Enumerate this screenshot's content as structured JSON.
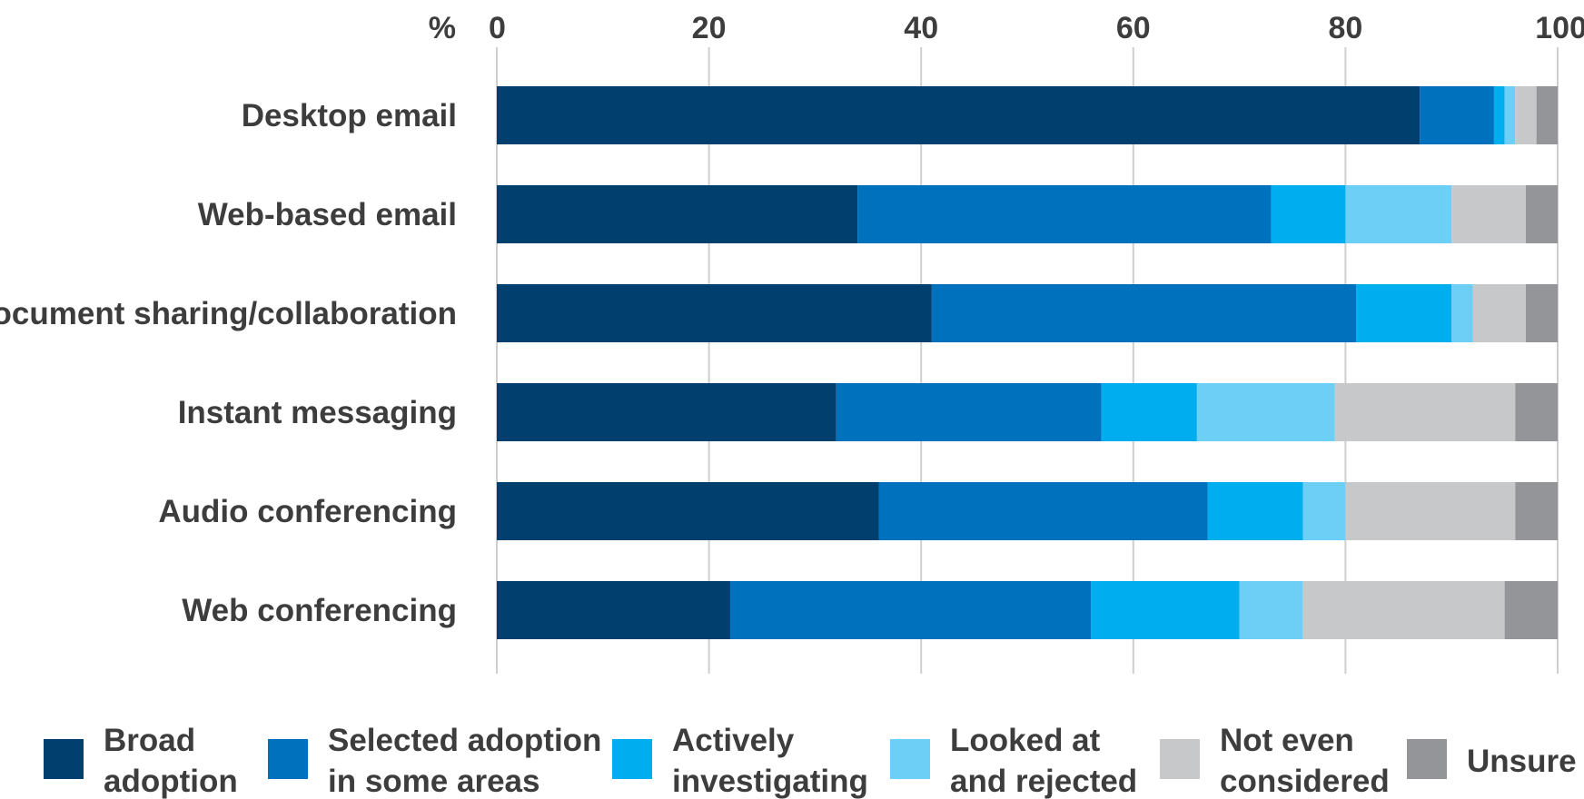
{
  "chart_data": {
    "type": "bar",
    "orientation": "horizontal",
    "stacked": true,
    "title": "",
    "xlabel": "",
    "ylabel": "",
    "axis_unit_label": "%",
    "xlim": [
      0,
      100
    ],
    "x_ticks": [
      "0",
      "20",
      "40",
      "60",
      "80",
      "100"
    ],
    "grid": true,
    "legend_position": "bottom",
    "categories": [
      "Desktop email",
      "Web-based email",
      "Document sharing/collaboration",
      "Instant messaging",
      "Audio conferencing",
      "Web conferencing"
    ],
    "series": [
      {
        "name": "Broad adoption",
        "legend_lines": [
          "Broad",
          "adoption"
        ],
        "color": "#003f6e",
        "values": [
          87,
          34,
          41,
          32,
          36,
          22
        ]
      },
      {
        "name": "Selected adoption in some areas",
        "legend_lines": [
          "Selected adoption",
          "in some areas"
        ],
        "color": "#0072bd",
        "values": [
          7,
          39,
          40,
          25,
          31,
          34
        ]
      },
      {
        "name": "Actively investigating",
        "legend_lines": [
          "Actively",
          "investigating"
        ],
        "color": "#00aeef",
        "values": [
          1,
          7,
          9,
          9,
          9,
          14
        ]
      },
      {
        "name": "Looked at and rejected",
        "legend_lines": [
          "Looked at",
          "and rejected"
        ],
        "color": "#6dcff6",
        "values": [
          1,
          10,
          2,
          13,
          4,
          6
        ]
      },
      {
        "name": "Not even considered",
        "legend_lines": [
          "Not even",
          "considered"
        ],
        "color": "#c7c8ca",
        "values": [
          2,
          7,
          5,
          17,
          16,
          19
        ]
      },
      {
        "name": "Unsure",
        "legend_lines": [
          "Unsure"
        ],
        "color": "#939598",
        "values": [
          2,
          3,
          3,
          4,
          4,
          5
        ]
      }
    ]
  }
}
